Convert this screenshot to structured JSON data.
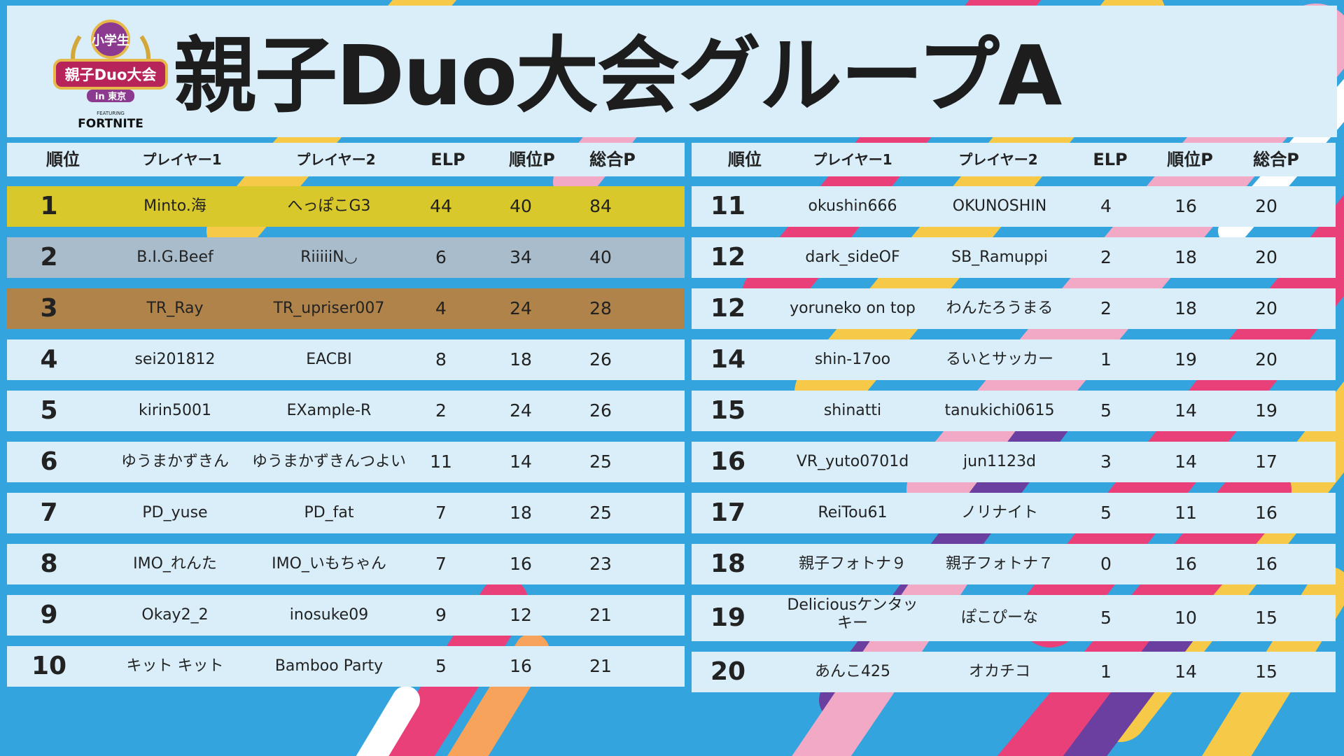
{
  "title": "親子Duo大会グループA",
  "logo": {
    "badge": "小学生",
    "name": "親子Duo大会",
    "sub": "in 東京",
    "featuring": "FEATURING",
    "brand": "FORTNITE"
  },
  "columns": {
    "rank": "順位",
    "player1": "プレイヤー1",
    "player2": "プレイヤー2",
    "elp": "ELP",
    "rank_points": "順位P",
    "total_points": "総合P"
  },
  "colors": {
    "gold": "#d8c82c",
    "silver": "#a9bccb",
    "bronze": "#b0834a",
    "row": "#d9eef9",
    "background": "#33a4de"
  },
  "left_rows": [
    {
      "rank": "1",
      "p1": "Minto.海",
      "p2": "へっぽこG3",
      "elp": "44",
      "rp": "40",
      "tp": "84"
    },
    {
      "rank": "2",
      "p1": "B.I.G.Beef",
      "p2": "RiiiiiN◡",
      "elp": "6",
      "rp": "34",
      "tp": "40"
    },
    {
      "rank": "3",
      "p1": "TR_Ray",
      "p2": "TR_upriser007",
      "elp": "4",
      "rp": "24",
      "tp": "28"
    },
    {
      "rank": "4",
      "p1": "sei201812",
      "p2": "EACBI",
      "elp": "8",
      "rp": "18",
      "tp": "26"
    },
    {
      "rank": "5",
      "p1": "kirin5001",
      "p2": "EXample-R",
      "elp": "2",
      "rp": "24",
      "tp": "26"
    },
    {
      "rank": "6",
      "p1": "ゆうまかずきん",
      "p2": "ゆうまかずきんつよい",
      "elp": "11",
      "rp": "14",
      "tp": "25"
    },
    {
      "rank": "7",
      "p1": "PD_yuse",
      "p2": "PD_fat",
      "elp": "7",
      "rp": "18",
      "tp": "25"
    },
    {
      "rank": "8",
      "p1": "IMO_れんた",
      "p2": "IMO_いもちゃん",
      "elp": "7",
      "rp": "16",
      "tp": "23"
    },
    {
      "rank": "9",
      "p1": "Okay2_2",
      "p2": "inosuke09",
      "elp": "9",
      "rp": "12",
      "tp": "21"
    },
    {
      "rank": "10",
      "p1": "キット キット",
      "p2": "Bamboo Party",
      "elp": "5",
      "rp": "16",
      "tp": "21"
    }
  ],
  "right_rows": [
    {
      "rank": "11",
      "p1": "okushin666",
      "p2": "OKUNOSHIN",
      "elp": "4",
      "rp": "16",
      "tp": "20"
    },
    {
      "rank": "12",
      "p1": "dark_sideOF",
      "p2": "SB_Ramuppi",
      "elp": "2",
      "rp": "18",
      "tp": "20"
    },
    {
      "rank": "12",
      "p1": "yoruneko on top",
      "p2": "わんたろうまる",
      "elp": "2",
      "rp": "18",
      "tp": "20"
    },
    {
      "rank": "14",
      "p1": "shin-17oo",
      "p2": "るいとサッカー",
      "elp": "1",
      "rp": "19",
      "tp": "20"
    },
    {
      "rank": "15",
      "p1": "shinatti",
      "p2": "tanukichi0615",
      "elp": "5",
      "rp": "14",
      "tp": "19"
    },
    {
      "rank": "16",
      "p1": "VR_yuto0701d",
      "p2": "jun1123d",
      "elp": "3",
      "rp": "14",
      "tp": "17"
    },
    {
      "rank": "17",
      "p1": "ReiTou61",
      "p2": "ノリナイト",
      "elp": "5",
      "rp": "11",
      "tp": "16"
    },
    {
      "rank": "18",
      "p1": "親子フォトナ９",
      "p2": "親子フォトナ７",
      "elp": "0",
      "rp": "16",
      "tp": "16"
    },
    {
      "rank": "19",
      "p1": "Deliciousケンタッキー",
      "p2": "ぽこぴーな",
      "elp": "5",
      "rp": "10",
      "tp": "15"
    },
    {
      "rank": "20",
      "p1": "あんこ425",
      "p2": "オカチコ",
      "elp": "1",
      "rp": "14",
      "tp": "15"
    }
  ]
}
